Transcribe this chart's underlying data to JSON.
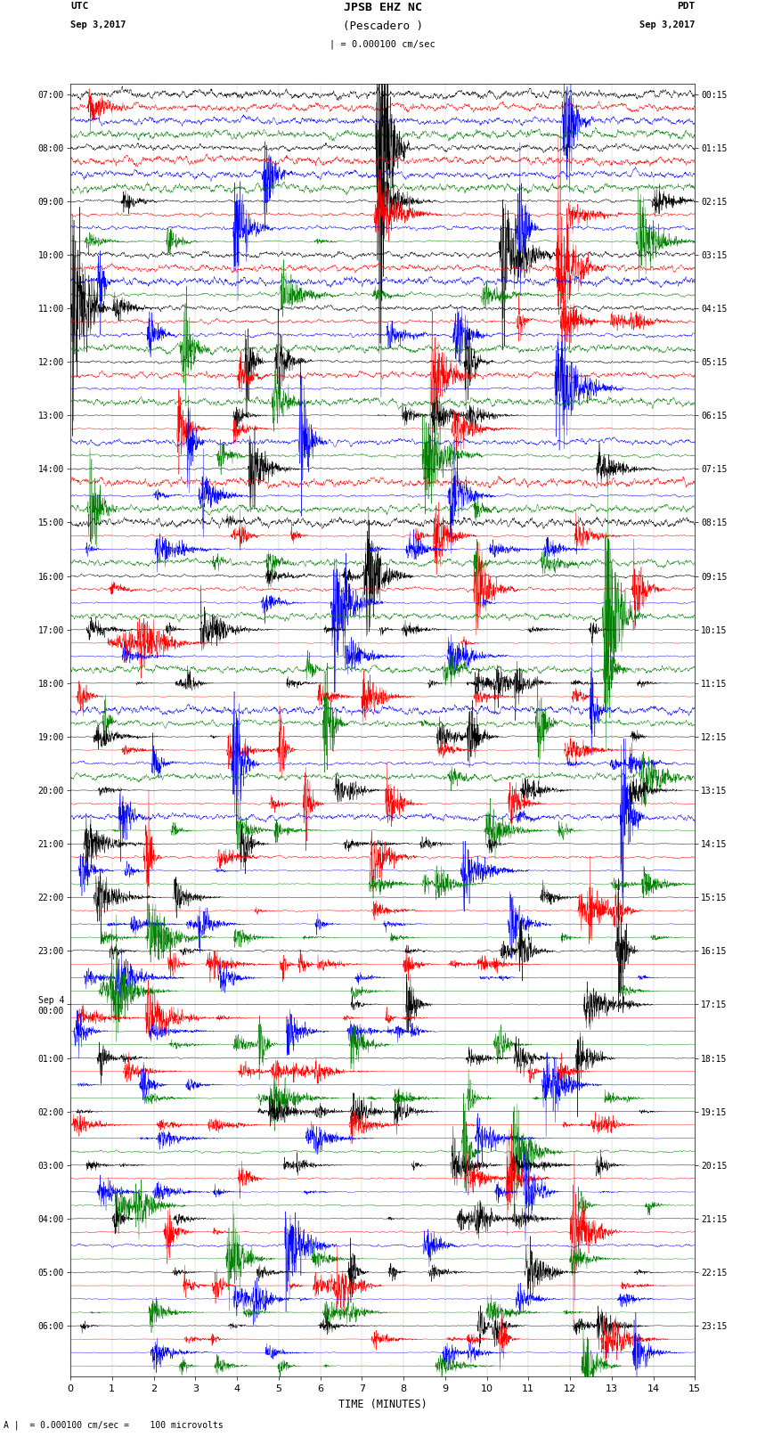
{
  "title_line1": "JPSB EHZ NC",
  "title_line2": "(Pescadero )",
  "scale_text": "| = 0.000100 cm/sec",
  "bottom_label": "A |  = 0.000100 cm/sec =    100 microvolts",
  "xlabel": "TIME (MINUTES)",
  "utc_label1": "UTC",
  "utc_label2": "Sep 3,2017",
  "pdt_label1": "PDT",
  "pdt_label2": "Sep 3,2017",
  "left_times": [
    "07:00",
    "08:00",
    "09:00",
    "10:00",
    "11:00",
    "12:00",
    "13:00",
    "14:00",
    "15:00",
    "16:00",
    "17:00",
    "18:00",
    "19:00",
    "20:00",
    "21:00",
    "22:00",
    "23:00",
    "Sep 4\n00:00",
    "01:00",
    "02:00",
    "03:00",
    "04:00",
    "05:00",
    "06:00"
  ],
  "right_times": [
    "00:15",
    "01:15",
    "02:15",
    "03:15",
    "04:15",
    "05:15",
    "06:15",
    "07:15",
    "08:15",
    "09:15",
    "10:15",
    "11:15",
    "12:15",
    "13:15",
    "14:15",
    "15:15",
    "16:15",
    "17:15",
    "18:15",
    "19:15",
    "20:15",
    "21:15",
    "22:15",
    "23:15"
  ],
  "n_per_group": 4,
  "n_groups": 24,
  "colors": [
    "black",
    "red",
    "blue",
    "green"
  ],
  "bg_color": "white",
  "xlim": [
    0,
    15
  ],
  "xticks": [
    0,
    1,
    2,
    3,
    4,
    5,
    6,
    7,
    8,
    9,
    10,
    11,
    12,
    13,
    14,
    15
  ],
  "minutes": 15,
  "figwidth": 8.5,
  "figheight": 16.13,
  "dpi": 100
}
